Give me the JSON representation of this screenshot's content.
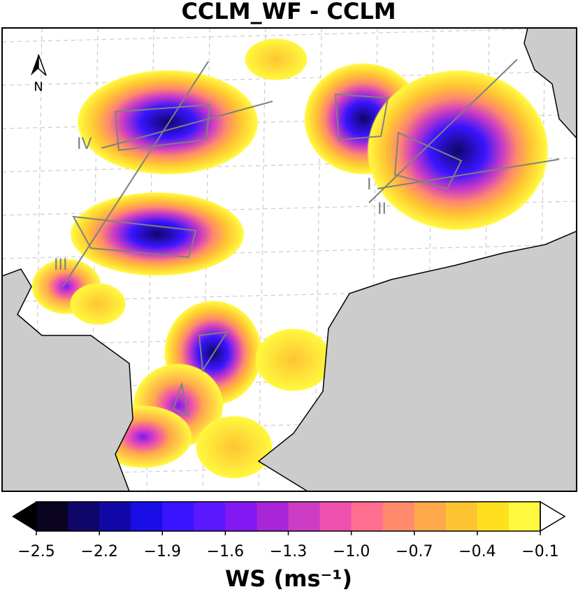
{
  "title": "CCLM_WF - CCLM",
  "north_label": "N",
  "transect_labels": [
    "I",
    "II",
    "III",
    "IV"
  ],
  "colorbar": {
    "range": [
      -2.5,
      -0.1
    ],
    "colors": [
      "#0b0420",
      "#0e0669",
      "#1208a8",
      "#1a0ee6",
      "#3a14ff",
      "#5c18ff",
      "#8418f2",
      "#a826d8",
      "#cc3cc4",
      "#ee50ae",
      "#ff6e8e",
      "#ff8a6c",
      "#ffa84c",
      "#ffc432",
      "#ffe01e",
      "#fff83e"
    ],
    "ticks": [
      {
        "value": -2.5,
        "label": "−2.5"
      },
      {
        "value": -2.2,
        "label": "−2.2"
      },
      {
        "value": -1.9,
        "label": "−1.9"
      },
      {
        "value": -1.6,
        "label": "−1.6"
      },
      {
        "value": -1.3,
        "label": "−1.3"
      },
      {
        "value": -1.0,
        "label": "−1.0"
      },
      {
        "value": -0.7,
        "label": "−0.7"
      },
      {
        "value": -0.4,
        "label": "−0.4"
      },
      {
        "value": -0.1,
        "label": "−0.1"
      }
    ],
    "label": "WS (ms⁻¹)"
  }
}
